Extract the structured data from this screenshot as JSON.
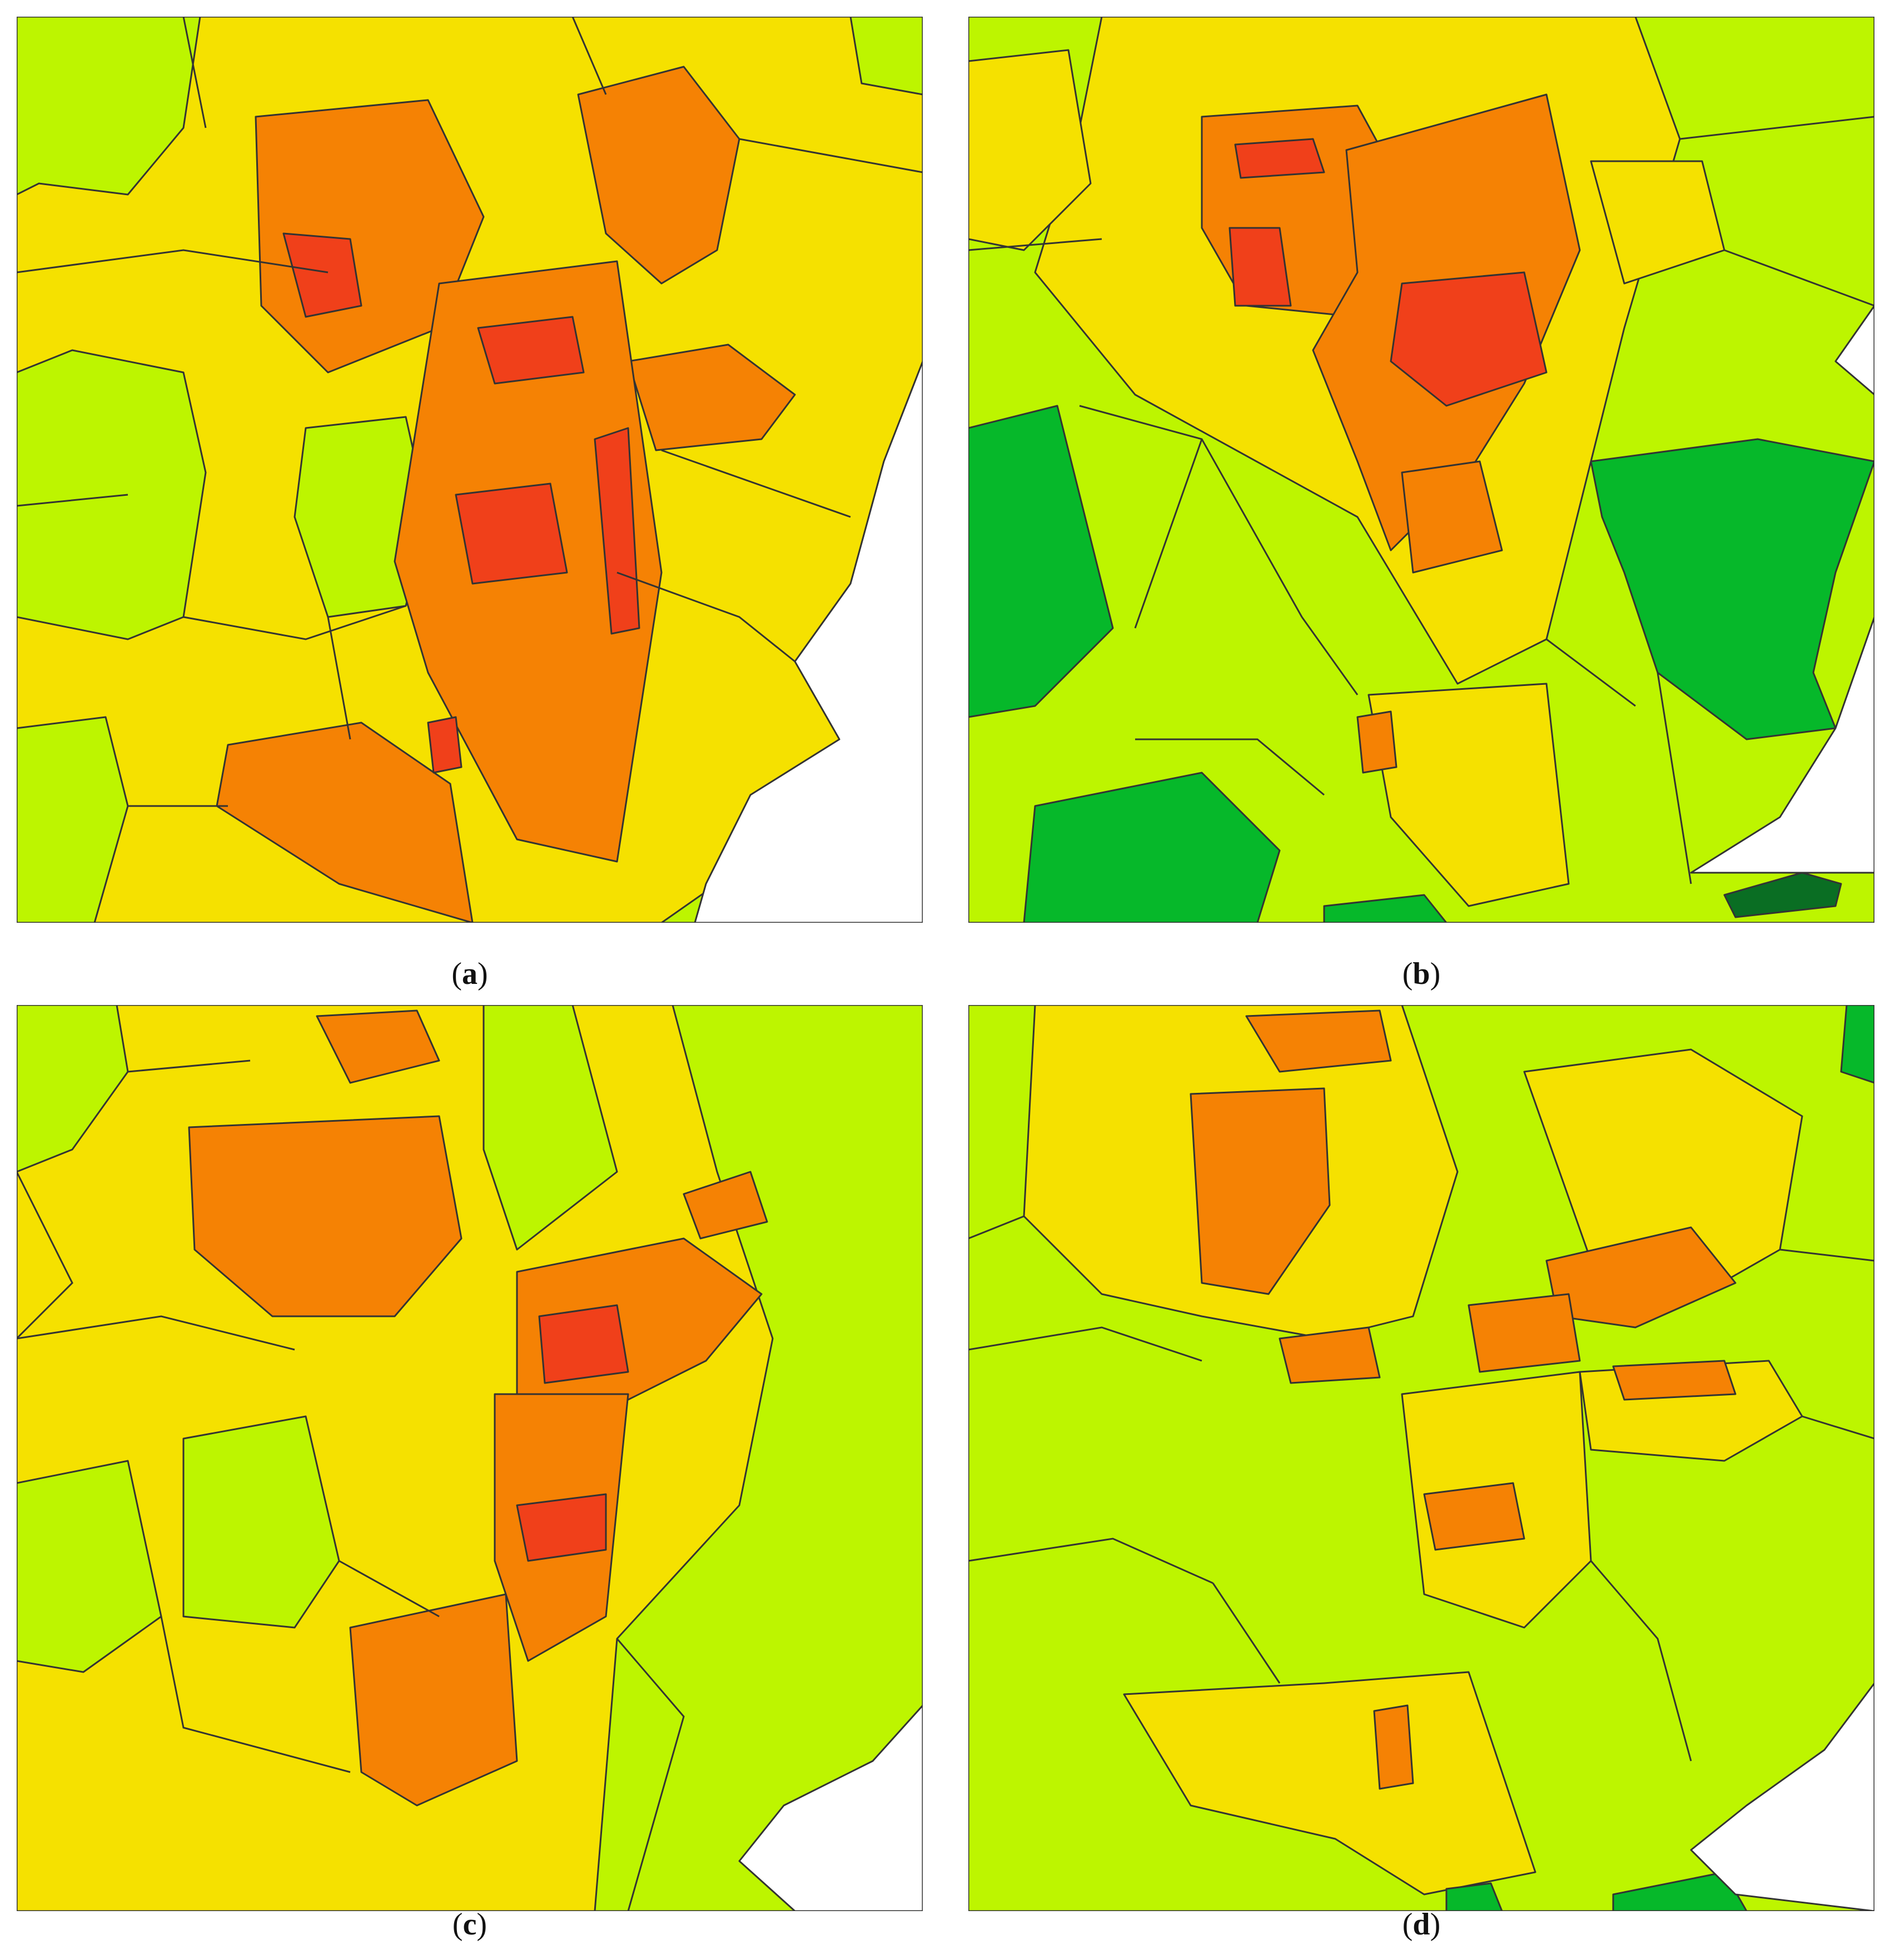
{
  "panels": [
    {
      "id": "a",
      "caption_open": "(",
      "caption_letter": "a",
      "caption_close": ")"
    },
    {
      "id": "b",
      "caption_open": "(",
      "caption_letter": "b",
      "caption_close": ")"
    },
    {
      "id": "c",
      "caption_open": "(",
      "caption_letter": "c",
      "caption_close": ")"
    },
    {
      "id": "d",
      "caption_open": "(",
      "caption_letter": "d",
      "caption_close": ")"
    }
  ],
  "colors": {
    "red": "#f0401a",
    "orange": "#f58204",
    "yellow": "#f5e100",
    "light_green": "#bdf500",
    "green": "#06b82a",
    "dark_green": "#0a6e23",
    "water": "#ffffff",
    "border": "#333333"
  }
}
